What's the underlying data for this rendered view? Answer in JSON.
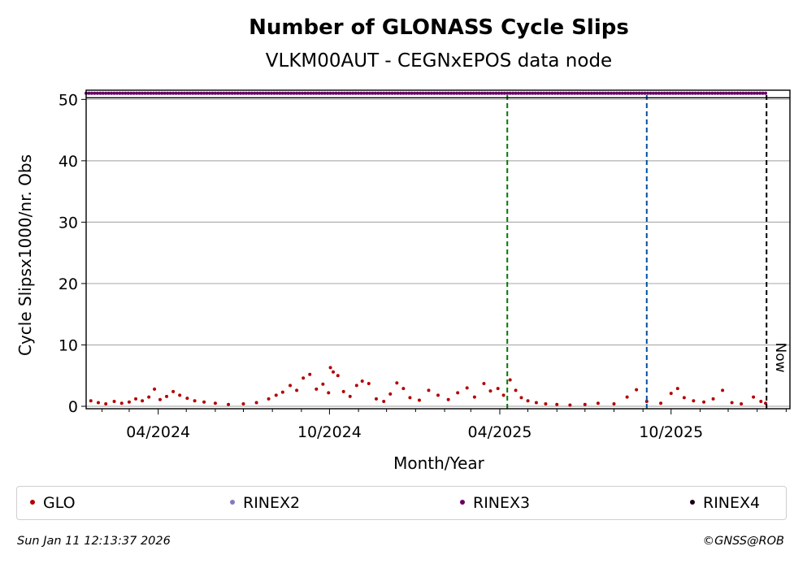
{
  "chart_data": {
    "type": "scatter",
    "title": "Number of GLONASS Cycle Slips",
    "subtitle": "VLKM00AUT - CEGNxEPOS data node",
    "xlabel": "Month/Year",
    "ylabel": "Cycle Slipsx1000/nr. Obs",
    "x_range": [
      "2024-01-15",
      "2026-02-05"
    ],
    "ylim": [
      0,
      51.5
    ],
    "x_ticks": [
      {
        "date": "2024-04-01",
        "label": "04/2024"
      },
      {
        "date": "2024-10-01",
        "label": "10/2024"
      },
      {
        "date": "2025-04-01",
        "label": "04/2025"
      },
      {
        "date": "2025-10-01",
        "label": "10/2025"
      }
    ],
    "y_ticks": [
      0,
      10,
      20,
      30,
      40,
      50
    ],
    "grid": "horizontal",
    "colors": {
      "GLO": "#b30000",
      "RINEX2": "#8878c0",
      "RINEX3": "#660066",
      "RINEX4": "#1a001a"
    },
    "series": [
      {
        "name": "GLO",
        "color": "#b30000",
        "points": [
          [
            "2024-01-20",
            0.9
          ],
          [
            "2024-01-28",
            0.6
          ],
          [
            "2024-02-05",
            0.4
          ],
          [
            "2024-02-14",
            0.8
          ],
          [
            "2024-02-22",
            0.5
          ],
          [
            "2024-03-01",
            0.7
          ],
          [
            "2024-03-08",
            1.2
          ],
          [
            "2024-03-15",
            0.9
          ],
          [
            "2024-03-22",
            1.5
          ],
          [
            "2024-03-28",
            2.8
          ],
          [
            "2024-04-03",
            1.1
          ],
          [
            "2024-04-10",
            1.6
          ],
          [
            "2024-04-17",
            2.4
          ],
          [
            "2024-04-24",
            1.8
          ],
          [
            "2024-05-02",
            1.3
          ],
          [
            "2024-05-10",
            0.9
          ],
          [
            "2024-05-20",
            0.7
          ],
          [
            "2024-06-01",
            0.5
          ],
          [
            "2024-06-15",
            0.3
          ],
          [
            "2024-07-01",
            0.4
          ],
          [
            "2024-07-15",
            0.6
          ],
          [
            "2024-07-28",
            1.2
          ],
          [
            "2024-08-05",
            1.8
          ],
          [
            "2024-08-12",
            2.3
          ],
          [
            "2024-08-20",
            3.4
          ],
          [
            "2024-08-27",
            2.6
          ],
          [
            "2024-09-03",
            4.6
          ],
          [
            "2024-09-10",
            5.2
          ],
          [
            "2024-09-17",
            2.8
          ],
          [
            "2024-09-24",
            3.6
          ],
          [
            "2024-09-30",
            2.2
          ],
          [
            "2024-10-02",
            6.3
          ],
          [
            "2024-10-05",
            5.6
          ],
          [
            "2024-10-10",
            5.0
          ],
          [
            "2024-10-16",
            2.4
          ],
          [
            "2024-10-23",
            1.6
          ],
          [
            "2024-10-30",
            3.4
          ],
          [
            "2024-11-05",
            4.1
          ],
          [
            "2024-11-12",
            3.7
          ],
          [
            "2024-11-20",
            1.2
          ],
          [
            "2024-11-28",
            0.8
          ],
          [
            "2024-12-05",
            2.0
          ],
          [
            "2024-12-12",
            3.8
          ],
          [
            "2024-12-19",
            2.9
          ],
          [
            "2024-12-26",
            1.4
          ],
          [
            "2025-01-05",
            1.0
          ],
          [
            "2025-01-15",
            2.6
          ],
          [
            "2025-01-25",
            1.8
          ],
          [
            "2025-02-05",
            1.1
          ],
          [
            "2025-02-15",
            2.2
          ],
          [
            "2025-02-25",
            3.0
          ],
          [
            "2025-03-05",
            1.5
          ],
          [
            "2025-03-15",
            3.7
          ],
          [
            "2025-03-22",
            2.5
          ],
          [
            "2025-03-30",
            2.9
          ],
          [
            "2025-04-05",
            1.8
          ],
          [
            "2025-04-12",
            4.3
          ],
          [
            "2025-04-18",
            2.6
          ],
          [
            "2025-04-24",
            1.4
          ],
          [
            "2025-05-01",
            0.9
          ],
          [
            "2025-05-10",
            0.6
          ],
          [
            "2025-05-20",
            0.4
          ],
          [
            "2025-06-01",
            0.3
          ],
          [
            "2025-06-15",
            0.2
          ],
          [
            "2025-07-01",
            0.3
          ],
          [
            "2025-07-15",
            0.5
          ],
          [
            "2025-08-01",
            0.4
          ],
          [
            "2025-08-15",
            1.5
          ],
          [
            "2025-08-25",
            2.7
          ],
          [
            "2025-09-05",
            0.8
          ],
          [
            "2025-09-20",
            0.5
          ],
          [
            "2025-10-01",
            2.1
          ],
          [
            "2025-10-08",
            2.9
          ],
          [
            "2025-10-15",
            1.4
          ],
          [
            "2025-10-25",
            0.9
          ],
          [
            "2025-11-05",
            0.7
          ],
          [
            "2025-11-15",
            1.2
          ],
          [
            "2025-11-25",
            2.6
          ],
          [
            "2025-12-05",
            0.6
          ],
          [
            "2025-12-15",
            0.4
          ],
          [
            "2025-12-28",
            1.5
          ],
          [
            "2026-01-05",
            0.8
          ],
          [
            "2026-01-10",
            0.5
          ]
        ]
      },
      {
        "name": "RINEX2",
        "color": "#8878c0",
        "points": []
      },
      {
        "name": "RINEX3",
        "color": "#660066",
        "line_y": 51,
        "from": "2024-01-15",
        "to": "2026-01-10"
      },
      {
        "name": "RINEX4",
        "color": "#1a001a",
        "points": []
      }
    ],
    "vertical_lines": [
      {
        "date": "2025-04-09",
        "color": "#007700",
        "style": "dashed"
      },
      {
        "date": "2025-09-05",
        "color": "#0050a0",
        "style": "dashed"
      },
      {
        "date": "2026-01-11",
        "color": "#000000",
        "style": "dashed",
        "label": "Now"
      }
    ],
    "legend": {
      "placement": "bottom",
      "items": [
        {
          "label": "GLO",
          "color": "#b30000"
        },
        {
          "label": "RINEX2",
          "color": "#8878c0"
        },
        {
          "label": "RINEX3",
          "color": "#660066"
        },
        {
          "label": "RINEX4",
          "color": "#1a001a"
        }
      ]
    }
  },
  "footer": {
    "timestamp": "Sun Jan 11 12:13:37 2026",
    "copyright": "©GNSS@ROB"
  }
}
